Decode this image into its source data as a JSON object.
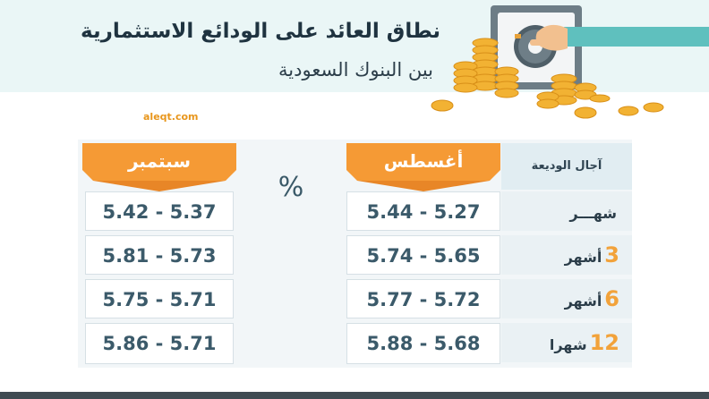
{
  "header": {
    "title": "نطاق العائد على الودائع الاستثمارية",
    "subtitle": "بين البنوك السعودية"
  },
  "source": "aleqt.com",
  "icons": [
    "bank-vault-icon",
    "gold-coins-icon",
    "hand-icon"
  ],
  "colors": {
    "header_bg": "#eaf6f6",
    "accent_orange": "#f59a35",
    "value_text": "#3b5a6a",
    "title_text": "#1f3340"
  },
  "chart_data": {
    "type": "table",
    "unit_label": "%",
    "row_header": "آجال الوديعة",
    "columns": [
      "أغسطس",
      "سبتمبر"
    ],
    "rows": [
      {
        "term_num": "",
        "term_word": "شهـــر",
        "august": "5.44 - 5.27",
        "september": "5.42 - 5.37"
      },
      {
        "term_num": "3",
        "term_word": "أشهر",
        "august": "5.74 - 5.65",
        "september": "5.81 - 5.73"
      },
      {
        "term_num": "6",
        "term_word": "أشهر",
        "august": "5.77 - 5.72",
        "september": "5.75 - 5.71"
      },
      {
        "term_num": "12",
        "term_word": "شهرا",
        "august": "5.88 - 5.68",
        "september": "5.86 - 5.71"
      }
    ]
  }
}
